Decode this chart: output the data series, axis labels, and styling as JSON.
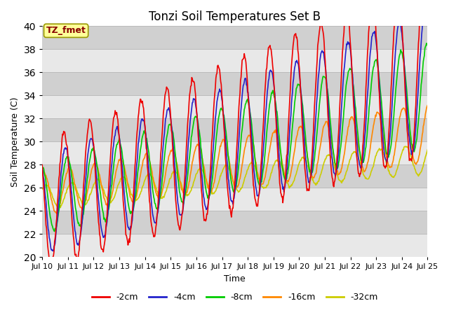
{
  "title": "Tonzi Soil Temperatures Set B",
  "xlabel": "Time",
  "ylabel": "Soil Temperature (C)",
  "ylim": [
    20,
    40
  ],
  "background_color": "#d8d8d8",
  "band_color_light": "#e8e8e8",
  "band_color_dark": "#d0d0d0",
  "figure_background": "#ffffff",
  "annotation_text": "TZ_fmet",
  "annotation_bg": "#ffff99",
  "annotation_fg": "#880000",
  "xtick_labels": [
    "Jul 10",
    "Jul 11",
    "Jul 12",
    "Jul 13",
    "Jul 14",
    "Jul 15",
    "Jul 16",
    "Jul 17",
    "Jul 18",
    "Jul 19",
    "Jul 20",
    "Jul 21",
    "Jul 22",
    "Jul 23",
    "Jul 24",
    "Jul 25"
  ],
  "legend_labels": [
    "-2cm",
    "-4cm",
    "-8cm",
    "-16cm",
    "-32cm"
  ],
  "line_colors": [
    "#ee0000",
    "#2222cc",
    "#00cc00",
    "#ff8800",
    "#cccc00"
  ],
  "line_widths": [
    1.2,
    1.2,
    1.2,
    1.2,
    1.2
  ]
}
